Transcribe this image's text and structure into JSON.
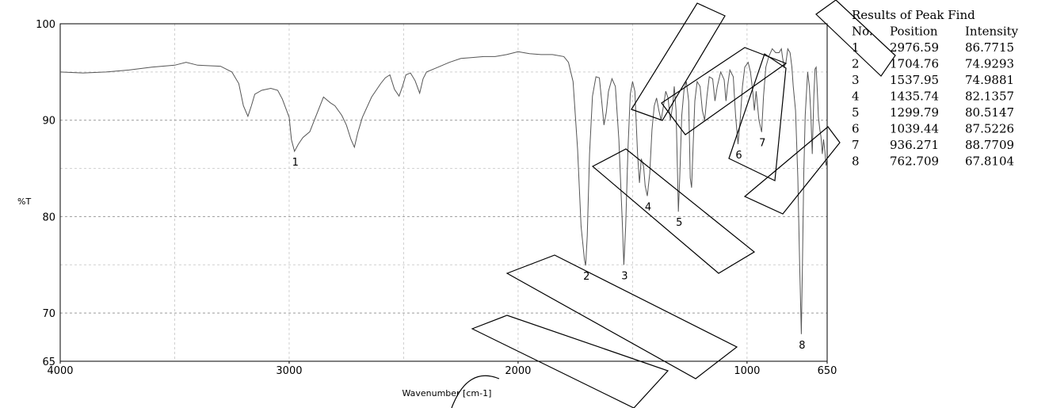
{
  "chart_data": {
    "type": "line",
    "title": "",
    "xlabel": "Wavenumber [cm-1]",
    "ylabel": "%T",
    "xlim": [
      4000,
      650
    ],
    "ylim": [
      65,
      100
    ],
    "x_reversed": true,
    "x_ticks": [
      "4000",
      "3000",
      "2000",
      "1000",
      "650"
    ],
    "y_ticks": [
      "100",
      "90",
      "80",
      "70",
      "65"
    ],
    "grid": true,
    "series": [
      {
        "points": [
          [
            4000,
            95.0
          ],
          [
            3900,
            94.9
          ],
          [
            3800,
            95.0
          ],
          [
            3700,
            95.2
          ],
          [
            3600,
            95.5
          ],
          [
            3500,
            95.7
          ],
          [
            3450,
            96.0
          ],
          [
            3400,
            95.7
          ],
          [
            3300,
            95.6
          ],
          [
            3250,
            95.0
          ],
          [
            3220,
            93.8
          ],
          [
            3200,
            91.5
          ],
          [
            3180,
            90.4
          ],
          [
            3165,
            91.5
          ],
          [
            3150,
            92.7
          ],
          [
            3120,
            93.1
          ],
          [
            3080,
            93.3
          ],
          [
            3050,
            93.1
          ],
          [
            3030,
            92.2
          ],
          [
            3000,
            90.3
          ],
          [
            2990,
            88.0
          ],
          [
            2976.59,
            86.77
          ],
          [
            2960,
            87.5
          ],
          [
            2940,
            88.2
          ],
          [
            2910,
            88.8
          ],
          [
            2880,
            90.6
          ],
          [
            2850,
            92.4
          ],
          [
            2820,
            91.8
          ],
          [
            2800,
            91.5
          ],
          [
            2770,
            90.5
          ],
          [
            2750,
            89.5
          ],
          [
            2730,
            88.0
          ],
          [
            2715,
            87.2
          ],
          [
            2700,
            88.7
          ],
          [
            2680,
            90.3
          ],
          [
            2640,
            92.4
          ],
          [
            2600,
            93.8
          ],
          [
            2580,
            94.4
          ],
          [
            2560,
            94.7
          ],
          [
            2540,
            93.2
          ],
          [
            2520,
            92.5
          ],
          [
            2505,
            93.5
          ],
          [
            2490,
            94.7
          ],
          [
            2470,
            94.9
          ],
          [
            2450,
            94.1
          ],
          [
            2430,
            92.8
          ],
          [
            2415,
            94.3
          ],
          [
            2400,
            95.0
          ],
          [
            2350,
            95.5
          ],
          [
            2300,
            96.0
          ],
          [
            2250,
            96.4
          ],
          [
            2200,
            96.5
          ],
          [
            2150,
            96.6
          ],
          [
            2100,
            96.6
          ],
          [
            2050,
            96.8
          ],
          [
            2000,
            97.1
          ],
          [
            1950,
            96.9
          ],
          [
            1900,
            96.8
          ],
          [
            1850,
            96.8
          ],
          [
            1800,
            96.6
          ],
          [
            1780,
            96.0
          ],
          [
            1760,
            94.0
          ],
          [
            1740,
            87.0
          ],
          [
            1725,
            79.0
          ],
          [
            1710,
            75.5
          ],
          [
            1704.76,
            74.93
          ],
          [
            1698,
            78.0
          ],
          [
            1688,
            86.5
          ],
          [
            1675,
            92.5
          ],
          [
            1660,
            94.5
          ],
          [
            1645,
            94.4
          ],
          [
            1635,
            92.0
          ],
          [
            1625,
            89.5
          ],
          [
            1615,
            90.8
          ],
          [
            1605,
            93.0
          ],
          [
            1590,
            94.3
          ],
          [
            1575,
            93.5
          ],
          [
            1560,
            88.0
          ],
          [
            1545,
            79.5
          ],
          [
            1537.95,
            74.99
          ],
          [
            1530,
            79.0
          ],
          [
            1520,
            87.0
          ],
          [
            1510,
            92.7
          ],
          [
            1500,
            94.0
          ],
          [
            1490,
            93.0
          ],
          [
            1478,
            86.5
          ],
          [
            1470,
            83.5
          ],
          [
            1462,
            86.0
          ],
          [
            1452,
            85.2
          ],
          [
            1445,
            83.2
          ],
          [
            1435.74,
            82.14
          ],
          [
            1425,
            84.5
          ],
          [
            1415,
            89.0
          ],
          [
            1405,
            91.5
          ],
          [
            1395,
            92.3
          ],
          [
            1385,
            91.0
          ],
          [
            1375,
            90.0
          ],
          [
            1365,
            91.5
          ],
          [
            1355,
            93.0
          ],
          [
            1345,
            92.3
          ],
          [
            1335,
            90.0
          ],
          [
            1325,
            91.5
          ],
          [
            1318,
            93.5
          ],
          [
            1310,
            91.0
          ],
          [
            1304,
            85.0
          ],
          [
            1299.79,
            80.51
          ],
          [
            1294,
            84.0
          ],
          [
            1285,
            90.5
          ],
          [
            1275,
            93.2
          ],
          [
            1265,
            94.0
          ],
          [
            1255,
            92.0
          ],
          [
            1248,
            84.0
          ],
          [
            1242,
            83.0
          ],
          [
            1236,
            87.0
          ],
          [
            1228,
            92.0
          ],
          [
            1218,
            94.0
          ],
          [
            1205,
            93.5
          ],
          [
            1195,
            91.0
          ],
          [
            1185,
            90.0
          ],
          [
            1175,
            92.5
          ],
          [
            1165,
            94.5
          ],
          [
            1150,
            94.3
          ],
          [
            1140,
            92.0
          ],
          [
            1130,
            93.5
          ],
          [
            1115,
            95.0
          ],
          [
            1100,
            94.2
          ],
          [
            1092,
            92.0
          ],
          [
            1085,
            93.5
          ],
          [
            1075,
            95.2
          ],
          [
            1060,
            94.5
          ],
          [
            1050,
            90.5
          ],
          [
            1039.44,
            87.52
          ],
          [
            1030,
            90.0
          ],
          [
            1020,
            93.5
          ],
          [
            1010,
            95.5
          ],
          [
            995,
            96.0
          ],
          [
            985,
            95.0
          ],
          [
            975,
            93.0
          ],
          [
            968,
            91.0
          ],
          [
            960,
            93.0
          ],
          [
            948,
            90.0
          ],
          [
            936.27,
            88.77
          ],
          [
            928,
            92.5
          ],
          [
            918,
            95.5
          ],
          [
            905,
            96.6
          ],
          [
            890,
            97.4
          ],
          [
            875,
            97.0
          ],
          [
            860,
            97.0
          ],
          [
            850,
            97.4
          ],
          [
            845,
            96.5
          ],
          [
            838,
            95.5
          ],
          [
            830,
            96.0
          ],
          [
            822,
            97.4
          ],
          [
            812,
            97.0
          ],
          [
            804,
            95.5
          ],
          [
            798,
            93.5
          ],
          [
            788,
            91.0
          ],
          [
            778,
            84.0
          ],
          [
            770,
            75.0
          ],
          [
            762.71,
            67.81
          ],
          [
            758,
            75.0
          ],
          [
            752,
            84.5
          ],
          [
            746,
            90.5
          ],
          [
            740,
            93.0
          ],
          [
            735,
            95.0
          ],
          [
            728,
            93.5
          ],
          [
            722,
            91.0
          ],
          [
            715,
            86.5
          ],
          [
            708,
            92.5
          ],
          [
            703,
            95.3
          ],
          [
            698,
            95.5
          ],
          [
            693,
            93.0
          ],
          [
            688,
            90.3
          ],
          [
            682,
            89.0
          ],
          [
            677,
            88.3
          ],
          [
            671,
            86.5
          ],
          [
            666,
            88.0
          ],
          [
            660,
            86.8
          ],
          [
            655,
            85.3
          ],
          [
            650,
            86.0
          ]
        ]
      }
    ],
    "peaks": [
      {
        "label": "1",
        "x": 2976.59,
        "y": 86.7715
      },
      {
        "label": "2",
        "x": 1704.76,
        "y": 74.9293
      },
      {
        "label": "3",
        "x": 1537.95,
        "y": 74.9881
      },
      {
        "label": "4",
        "x": 1435.74,
        "y": 82.1357
      },
      {
        "label": "5",
        "x": 1299.79,
        "y": 80.5147
      },
      {
        "label": "6",
        "x": 1039.44,
        "y": 87.5226
      },
      {
        "label": "7",
        "x": 936.271,
        "y": 88.7709
      },
      {
        "label": "8",
        "x": 762.709,
        "y": 67.8104
      }
    ],
    "peak_table": {
      "title": "Results of Peak Find",
      "headers": [
        "No.",
        "Position",
        "Intensity"
      ],
      "rows": [
        [
          "1",
          "2976.59",
          "86.7715"
        ],
        [
          "2",
          "1704.76",
          "74.9293"
        ],
        [
          "3",
          "1537.95",
          "74.9881"
        ],
        [
          "4",
          "1435.74",
          "82.1357"
        ],
        [
          "5",
          "1299.79",
          "80.5147"
        ],
        [
          "6",
          "1039.44",
          "87.5226"
        ],
        [
          "7",
          "936.271",
          "88.7709"
        ],
        [
          "8",
          "762.709",
          "67.8104"
        ]
      ]
    }
  }
}
